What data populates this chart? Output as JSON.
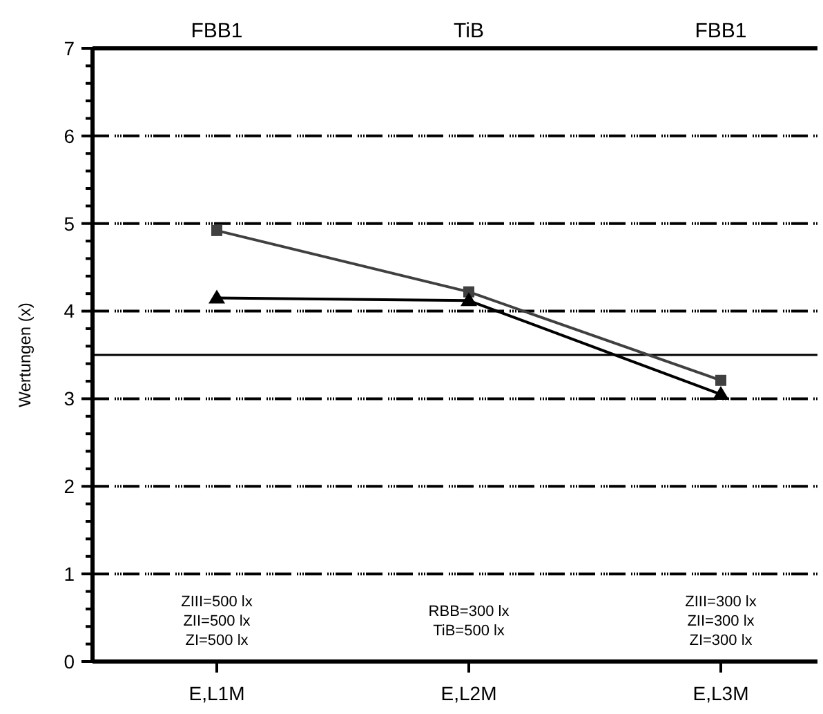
{
  "chart_data": {
    "type": "line",
    "ylabel": "Wertungen (x)",
    "categories": [
      "E,L1M",
      "E,L2M",
      "E,L3M"
    ],
    "series": [
      {
        "color": "#404040",
        "values": [
          4.92,
          4.22,
          3.21
        ],
        "marker": "square"
      },
      {
        "color": "#000000",
        "values": [
          4.15,
          4.12,
          3.05
        ],
        "marker": "triangle"
      }
    ],
    "ylim": [
      0,
      7
    ],
    "yticks": [
      0,
      {
        "value": 0.2,
        "label": null
      },
      {
        "value": 0.4,
        "label": null
      },
      {
        "value": 0.6,
        "label": null
      },
      {
        "value": 0.8,
        "label": null
      },
      1,
      {
        "value": 1.2,
        "label": null
      },
      {
        "value": 1.4,
        "label": null
      },
      {
        "value": 1.6,
        "label": null
      },
      {
        "value": 1.8,
        "label": null
      },
      2,
      {
        "value": 2.2,
        "label": null
      },
      {
        "value": 2.4,
        "label": null
      },
      {
        "value": 2.6,
        "label": null
      },
      {
        "value": 2.8,
        "label": null
      },
      3,
      {
        "value": 3.2,
        "label": null
      },
      {
        "value": 3.4,
        "label": null
      },
      {
        "value": 3.6,
        "label": null
      },
      {
        "value": 3.8,
        "label": null
      },
      4,
      {
        "value": 4.2,
        "label": null
      },
      {
        "value": 4.4,
        "label": null
      },
      {
        "value": 4.6,
        "label": null
      },
      {
        "value": 4.8,
        "label": null
      },
      5,
      {
        "value": 5.2,
        "label": null
      },
      {
        "value": 5.4,
        "label": null
      },
      {
        "value": 5.6,
        "label": null
      },
      {
        "value": 5.8,
        "label": null
      },
      6,
      {
        "value": 6.2,
        "label": null
      },
      {
        "value": 6.4,
        "label": null
      },
      {
        "value": 6.6,
        "label": null
      },
      {
        "value": 6.8,
        "label": null
      },
      7
    ],
    "grid": "y",
    "ref_lines": [
      {
        "axis": "y",
        "value": 3.5,
        "color": "#000000"
      }
    ],
    "annotations": [
      "FBB1",
      "TiB",
      "FBB1",
      "ZIII=500 lx\nZII=500 lx\nZI=500 lx",
      "RBB=300 lx\nTiB=500 lx",
      "ZIII=300 lx\nZII=300 lx\nZI=300 lx"
    ]
  }
}
